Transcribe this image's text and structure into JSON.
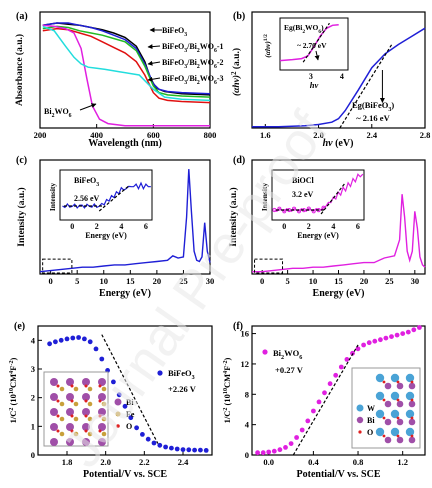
{
  "watermark": "Journal Pre-proof",
  "colors": {
    "black": "#000000",
    "blue": "#1f1fd6",
    "red": "#e01010",
    "green": "#22bb22",
    "cyan": "#22dddd",
    "magenta": "#e020e0",
    "dash": "#000000"
  },
  "chart_data": [
    {
      "panel": "(a)",
      "type": "line",
      "xlabel": "Wavelength (nm)",
      "ylabel": "Absorbance (a.u.)",
      "xlim": [
        200,
        800
      ],
      "xticks": [
        200,
        400,
        600,
        800
      ],
      "series": [
        {
          "name": "BiFeO3",
          "color": "#000000",
          "x": [
            210,
            260,
            300,
            340,
            380,
            420,
            460,
            500,
            540,
            570,
            590,
            610,
            640,
            700,
            800
          ],
          "y": [
            0.93,
            0.95,
            0.94,
            0.93,
            0.91,
            0.89,
            0.86,
            0.82,
            0.74,
            0.6,
            0.45,
            0.36,
            0.33,
            0.31,
            0.3
          ]
        },
        {
          "name": "BiFeO3/Bi2WO6-1",
          "color": "#1f1fd6",
          "x": [
            210,
            260,
            300,
            340,
            380,
            420,
            460,
            500,
            540,
            570,
            600,
            620,
            650,
            700,
            800
          ],
          "y": [
            0.93,
            0.95,
            0.95,
            0.93,
            0.91,
            0.88,
            0.84,
            0.8,
            0.72,
            0.58,
            0.4,
            0.35,
            0.33,
            0.32,
            0.31
          ]
        },
        {
          "name": "BiFeO3/Bi2WO6-2",
          "color": "#22bb22",
          "x": [
            210,
            260,
            300,
            340,
            380,
            420,
            460,
            500,
            540,
            570,
            600,
            620,
            650,
            700,
            800
          ],
          "y": [
            0.9,
            0.92,
            0.91,
            0.88,
            0.86,
            0.84,
            0.81,
            0.78,
            0.7,
            0.56,
            0.38,
            0.32,
            0.3,
            0.29,
            0.28
          ]
        },
        {
          "name": "BiFeO3/Bi2WO6-3",
          "color": "#e01010",
          "x": [
            210,
            260,
            300,
            340,
            380,
            420,
            460,
            500,
            540,
            570,
            600,
            620,
            650,
            700,
            800
          ],
          "y": [
            0.88,
            0.9,
            0.89,
            0.86,
            0.83,
            0.78,
            0.73,
            0.68,
            0.6,
            0.48,
            0.32,
            0.27,
            0.25,
            0.24,
            0.23
          ]
        },
        {
          "name": "Bi2WO6",
          "color": "#e020e0",
          "x": [
            210,
            250,
            290,
            320,
            345,
            365,
            385,
            410,
            440,
            500,
            600,
            700,
            800
          ],
          "y": [
            0.93,
            0.92,
            0.9,
            0.86,
            0.72,
            0.45,
            0.2,
            0.08,
            0.04,
            0.02,
            0.02,
            0.02,
            0.02
          ]
        },
        {
          "name": "cyan",
          "color": "#22dddd",
          "x": [
            210,
            250,
            290,
            320,
            345,
            370,
            400,
            430,
            480,
            550,
            600,
            640,
            700,
            800
          ],
          "y": [
            0.92,
            0.88,
            0.74,
            0.64,
            0.58,
            0.55,
            0.54,
            0.53,
            0.51,
            0.48,
            0.35,
            0.28,
            0.26,
            0.25
          ]
        }
      ],
      "legend": [
        "BiFeO",
        "BiFeO",
        "BiFeO",
        "BiFeO",
        "Bi"
      ]
    },
    {
      "panel": "(b)",
      "type": "line",
      "xlabel": "hv (eV)",
      "ylabel": "(αhv)² (a.u.)",
      "xlim": [
        1.5,
        2.8
      ],
      "xticks": [
        1.6,
        2.0,
        2.4,
        2.8
      ],
      "series": [
        {
          "name": "BiFeO3",
          "color": "#1f1fd6",
          "x": [
            1.5,
            1.7,
            1.9,
            2.0,
            2.1,
            2.15,
            2.2,
            2.3,
            2.4,
            2.5,
            2.6,
            2.7,
            2.8
          ],
          "y": [
            0.01,
            0.01,
            0.02,
            0.03,
            0.05,
            0.08,
            0.15,
            0.33,
            0.52,
            0.64,
            0.72,
            0.79,
            0.86
          ]
        }
      ],
      "annotation": "Eg(BiFeO3) ~2.16 eV",
      "inset": {
        "xlabel": "hv",
        "ylabel": "(αhv)^1/2",
        "xticks": [
          3,
          4
        ],
        "annotation": "Eg(Bi2WO6) ~2.70 eV",
        "series": [
          {
            "name": "Bi2WO6",
            "color": "#e020e0",
            "x": [
              2.0,
              2.4,
              2.7,
              2.9,
              3.1,
              3.3,
              3.5,
              3.7,
              3.9
            ],
            "y": [
              0.18,
              0.2,
              0.22,
              0.27,
              0.45,
              0.65,
              0.8,
              0.86,
              0.87
            ]
          }
        ]
      }
    },
    {
      "panel": "(c)",
      "type": "line",
      "xlabel": "Energy (eV)",
      "ylabel": "Intensity (a.u.)",
      "xlim": [
        -2,
        30
      ],
      "xticks": [
        0,
        5,
        10,
        15,
        20,
        25,
        30
      ],
      "series": [
        {
          "name": "BiFeO3",
          "color": "#1f1fd6",
          "x": [
            -2,
            0,
            2,
            4,
            6,
            8,
            10,
            12,
            14,
            16,
            18,
            20,
            22,
            23,
            24,
            25,
            25.6,
            26,
            26.5,
            27,
            27.5,
            28,
            28.5,
            29,
            29.5,
            30
          ],
          "y": [
            0.02,
            0.03,
            0.04,
            0.05,
            0.06,
            0.06,
            0.07,
            0.08,
            0.08,
            0.09,
            0.1,
            0.11,
            0.12,
            0.16,
            0.14,
            0.15,
            0.5,
            0.92,
            0.55,
            0.2,
            0.12,
            0.11,
            0.15,
            0.45,
            0.2,
            0.1
          ]
        }
      ],
      "inset": {
        "title": "BiFeO3",
        "annotation": "2.56 eV",
        "xlabel": "Energy (eV)",
        "ylabel": "Intensity",
        "xticks": [
          0,
          2,
          4,
          6
        ]
      }
    },
    {
      "panel": "(d)",
      "type": "line",
      "xlabel": "Energy (eV)",
      "ylabel": "Intensity (a.u.)",
      "xlim": [
        -2,
        32
      ],
      "xticks": [
        0,
        5,
        10,
        15,
        20,
        25,
        30
      ],
      "series": [
        {
          "name": "BiOCl",
          "color": "#e020e0",
          "x": [
            -2,
            0,
            2,
            4,
            6,
            8,
            10,
            12,
            14,
            16,
            18,
            20,
            22,
            24,
            26,
            27,
            27.5,
            28,
            28.5,
            29,
            29.5,
            30,
            30.5,
            31,
            31.5,
            32
          ],
          "y": [
            0.02,
            0.02,
            0.03,
            0.04,
            0.05,
            0.05,
            0.06,
            0.06,
            0.07,
            0.08,
            0.09,
            0.1,
            0.1,
            0.14,
            0.16,
            0.3,
            0.7,
            0.5,
            0.2,
            0.12,
            0.2,
            0.55,
            0.4,
            0.15,
            0.08,
            0.06
          ]
        }
      ],
      "inset": {
        "title": "BiOCl",
        "annotation": "3.2 eV",
        "xlabel": "Energy (eV)",
        "ylabel": "Intensity",
        "xticks": [
          0,
          2,
          4,
          6
        ]
      }
    },
    {
      "panel": "(e)",
      "type": "scatter",
      "xlabel": "Potential/V vs. SCE",
      "ylabel": "1/C² (10¹⁰CM⁴F⁻²)",
      "xlim": [
        1.65,
        2.55
      ],
      "ylim": [
        0,
        4.5
      ],
      "xticks": [
        1.8,
        2.0,
        2.2,
        2.4
      ],
      "yticks": [
        0,
        1,
        2,
        3,
        4
      ],
      "series": [
        {
          "name": "BiFeO3",
          "color": "#1f1fd6",
          "x": [
            1.71,
            1.74,
            1.77,
            1.8,
            1.83,
            1.86,
            1.89,
            1.92,
            1.95,
            1.98,
            2.01,
            2.04,
            2.07,
            2.1,
            2.13,
            2.16,
            2.19,
            2.22,
            2.25,
            2.28,
            2.31,
            2.34,
            2.37,
            2.4,
            2.43,
            2.46,
            2.49,
            2.52
          ],
          "y": [
            3.88,
            3.95,
            4.0,
            4.05,
            4.08,
            4.1,
            4.05,
            3.95,
            3.7,
            3.35,
            2.95,
            2.55,
            2.1,
            1.7,
            1.3,
            0.95,
            0.72,
            0.55,
            0.42,
            0.34,
            0.28,
            0.24,
            0.21,
            0.19,
            0.18,
            0.17,
            0.17,
            0.16
          ]
        }
      ],
      "legend": [
        "BiFeO3"
      ],
      "annotation": "+2.26 V",
      "inset_legend": [
        "Bi",
        "Fe",
        "O"
      ]
    },
    {
      "panel": "(f)",
      "type": "scatter",
      "xlabel": "Potential/V vs. SCE",
      "ylabel": "1/C² (10¹⁰CM⁴F⁻²)",
      "xlim": [
        -0.15,
        1.4
      ],
      "ylim": [
        0,
        17
      ],
      "xticks": [
        0.0,
        0.4,
        0.8,
        1.2
      ],
      "yticks": [
        0,
        4,
        8,
        12,
        16
      ],
      "series": [
        {
          "name": "Bi2WO6",
          "color": "#e020e0",
          "x": [
            -0.1,
            -0.05,
            0.0,
            0.05,
            0.1,
            0.15,
            0.2,
            0.25,
            0.3,
            0.35,
            0.4,
            0.45,
            0.5,
            0.55,
            0.6,
            0.65,
            0.7,
            0.75,
            0.8,
            0.85,
            0.9,
            0.95,
            1.0,
            1.05,
            1.1,
            1.15,
            1.2,
            1.25,
            1.3,
            1.35
          ],
          "y": [
            0.3,
            0.3,
            0.4,
            0.5,
            0.7,
            1.0,
            1.5,
            2.3,
            3.3,
            4.5,
            5.8,
            7.0,
            8.2,
            9.4,
            10.5,
            11.6,
            12.6,
            13.4,
            14.0,
            14.5,
            14.8,
            15.0,
            15.2,
            15.4,
            15.6,
            15.8,
            16.0,
            16.2,
            16.5,
            16.8
          ]
        }
      ],
      "legend": [
        "Bi2WO6"
      ],
      "annotation": "+0.27 V",
      "inset_legend": [
        "W",
        "Bi",
        "O"
      ]
    }
  ]
}
